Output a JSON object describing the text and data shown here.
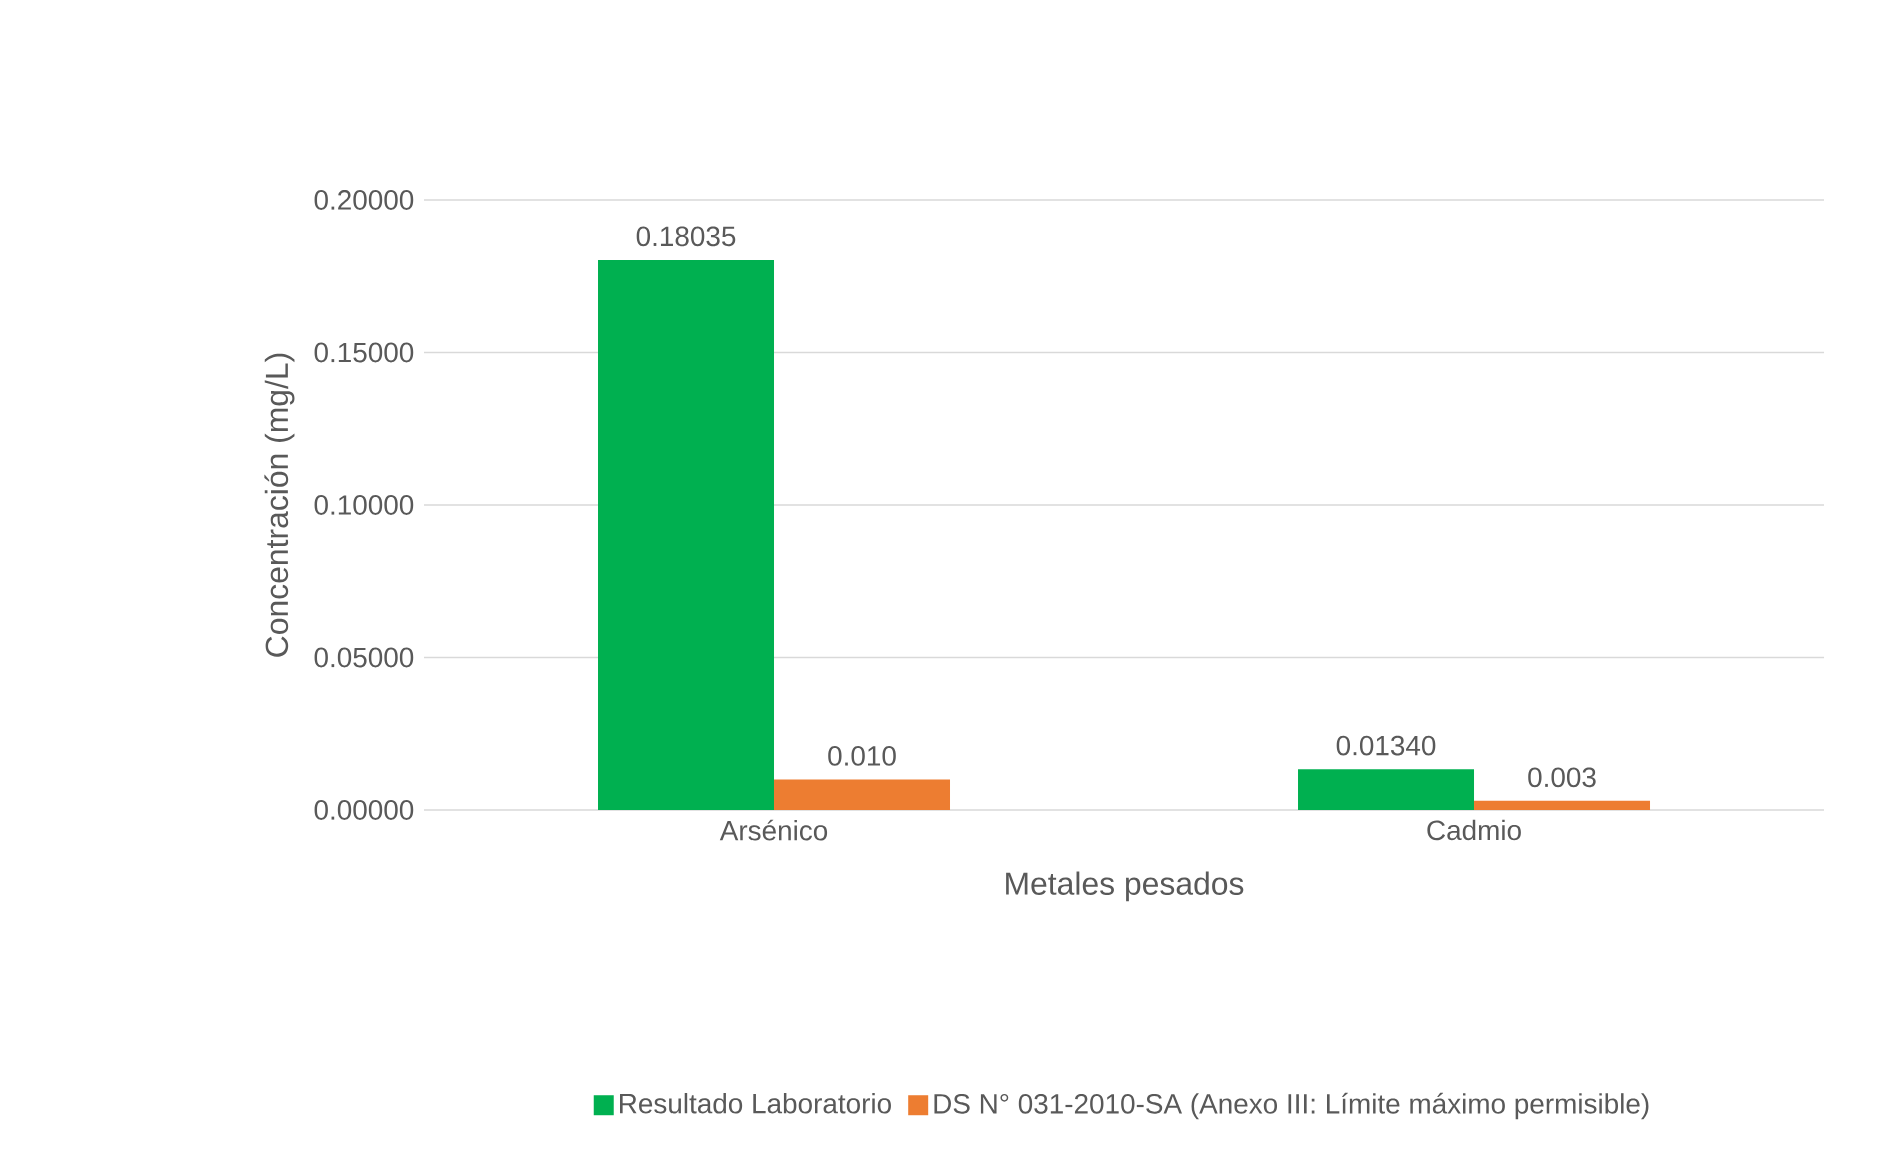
{
  "chart_data": {
    "type": "bar",
    "xlabel": "Metales pesados",
    "ylabel": "Concentración (mg/L)",
    "categories": [
      "Arsénico",
      "Cadmio"
    ],
    "series": [
      {
        "name": "Resultado Laboratorio",
        "color": "#00b050",
        "values": [
          0.18035,
          0.0134
        ],
        "value_labels": [
          "0.18035",
          "0.01340"
        ]
      },
      {
        "name": "DS N° 031-2010-SA (Anexo III: Límite máximo permisible)",
        "color": "#ed7d31",
        "values": [
          0.01,
          0.003
        ],
        "value_labels": [
          "0.010",
          "0.003"
        ]
      }
    ],
    "ylim": [
      0,
      0.2
    ],
    "yticks": [
      {
        "value": 0,
        "label": "0.00000"
      },
      {
        "value": 0.05,
        "label": "0.05000"
      },
      {
        "value": 0.1,
        "label": "0.10000"
      },
      {
        "value": 0.15,
        "label": "0.15000"
      },
      {
        "value": 0.2,
        "label": "0.20000"
      }
    ],
    "grid": "y",
    "legend": "bottom"
  }
}
